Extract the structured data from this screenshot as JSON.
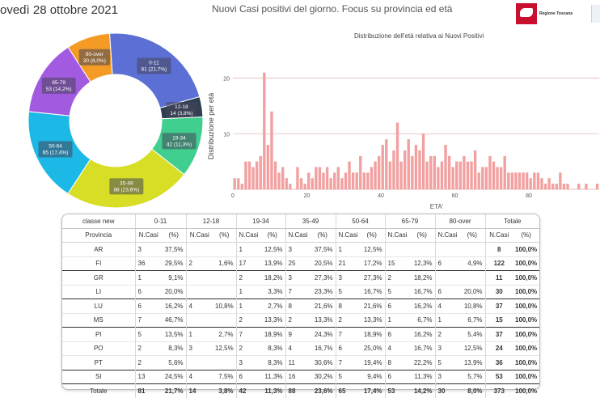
{
  "header": {
    "date": "ovedì 28 ottobre 2021",
    "title": "Nuovi Casi positivi del giorno. Focus su provincia ed età",
    "logo_text": "Regione Toscana"
  },
  "colors": {
    "accent": "#cc0000",
    "hist_bar": "#f2a0a0",
    "hist_grid": "#e2a9a9",
    "band_line": "#2e2e2e"
  },
  "donut": {
    "slices": [
      {
        "label": "0-11",
        "value": 81,
        "text": "81 (21,7%)",
        "color": "#5b6fd4"
      },
      {
        "label": "12-18",
        "value": 14,
        "text": "14 (3,8%)",
        "color": "#2f3f53"
      },
      {
        "label": "19-34",
        "value": 42,
        "text": "42 (11,3%)",
        "color": "#40cf8e"
      },
      {
        "label": "35-49",
        "value": 88,
        "text": "88 (23,6%)",
        "color": "#d7de25"
      },
      {
        "label": "50-64",
        "value": 65,
        "text": "65 (17,4%)",
        "color": "#1cb9e6"
      },
      {
        "label": "65-79",
        "value": 53,
        "text": "53 (14,2%)",
        "color": "#a25ae0"
      },
      {
        "label": "80-over",
        "value": 30,
        "text": "30 (8,0%)",
        "color": "#f39b25"
      }
    ]
  },
  "chart_data": {
    "type": "bar",
    "title": "Distribuzione dell'età relativa ai Nuovi Positivi",
    "xlabel": "ETA'",
    "ylabel": "Distribuzione per età",
    "xlim": [
      0,
      99
    ],
    "ylim": [
      0,
      23
    ],
    "xticks": [
      "0",
      "20",
      "40",
      "60",
      "80"
    ],
    "yticks": [
      "10",
      "20"
    ],
    "grid": true,
    "x": [
      0,
      1,
      2,
      3,
      4,
      5,
      6,
      7,
      8,
      9,
      10,
      11,
      12,
      13,
      14,
      15,
      16,
      17,
      18,
      19,
      20,
      21,
      22,
      23,
      24,
      25,
      26,
      27,
      28,
      29,
      30,
      31,
      32,
      33,
      34,
      35,
      36,
      37,
      38,
      39,
      40,
      41,
      42,
      43,
      44,
      45,
      46,
      47,
      48,
      49,
      50,
      51,
      52,
      53,
      54,
      55,
      56,
      57,
      58,
      59,
      60,
      61,
      62,
      63,
      64,
      65,
      66,
      67,
      68,
      69,
      70,
      71,
      72,
      73,
      74,
      75,
      76,
      77,
      78,
      79,
      80,
      81,
      82,
      83,
      84,
      85,
      86,
      87,
      88,
      89,
      90,
      91,
      92,
      93,
      94,
      95,
      96,
      97,
      98
    ],
    "values": [
      2,
      2,
      1,
      5,
      5,
      4,
      5,
      6,
      21,
      8,
      14,
      5,
      3,
      4,
      2,
      1,
      0,
      4,
      2,
      1,
      3,
      2,
      4,
      4,
      3,
      4,
      2,
      3,
      4,
      2,
      3,
      5,
      3,
      3,
      6,
      3,
      3,
      4,
      5,
      6,
      8,
      9,
      5,
      7,
      12,
      5,
      7,
      9,
      6,
      8,
      7,
      10,
      5,
      6,
      6,
      4,
      5,
      8,
      6,
      4,
      5,
      5,
      6,
      5,
      5,
      7,
      3,
      4,
      4,
      6,
      5,
      4,
      4,
      6,
      3,
      3,
      3,
      3,
      3,
      3,
      2,
      3,
      3,
      2,
      1,
      2,
      1,
      1,
      3,
      1,
      1,
      0,
      0,
      1,
      0,
      1,
      0,
      0,
      1
    ]
  },
  "table": {
    "group_headers": [
      "classe new",
      "0-11",
      "12-18",
      "19-34",
      "35-49",
      "50-64",
      "65-79",
      "80-over",
      "Totale"
    ],
    "sub_headers": {
      "province": "Provincia",
      "n": "N.Casi",
      "pct": "(%)"
    },
    "rows": [
      {
        "prov": "AR",
        "cells": [
          "3",
          "37,5%",
          "",
          "",
          "1",
          "12,5%",
          "3",
          "37,5%",
          "1",
          "12,5%",
          "",
          "",
          "",
          ""
        ],
        "tot_n": "8",
        "tot_p": "100,0%"
      },
      {
        "prov": "FI",
        "cells": [
          "36",
          "29,5%",
          "2",
          "1,6%",
          "17",
          "13,9%",
          "25",
          "20,5%",
          "21",
          "17,2%",
          "15",
          "12,3%",
          "6",
          "4,9%"
        ],
        "tot_n": "122",
        "tot_p": "100,0%"
      },
      {
        "prov": "GR",
        "cells": [
          "1",
          "9,1%",
          "",
          "",
          "2",
          "18,2%",
          "3",
          "27,3%",
          "3",
          "27,3%",
          "2",
          "18,2%",
          "",
          ""
        ],
        "tot_n": "11",
        "tot_p": "100,0%"
      },
      {
        "prov": "LI",
        "cells": [
          "6",
          "20,0%",
          "",
          "",
          "1",
          "3,3%",
          "7",
          "23,3%",
          "5",
          "16,7%",
          "5",
          "16,7%",
          "6",
          "20,0%"
        ],
        "tot_n": "30",
        "tot_p": "100,0%"
      },
      {
        "prov": "LU",
        "cells": [
          "6",
          "16,2%",
          "4",
          "10,8%",
          "1",
          "2,7%",
          "8",
          "21,6%",
          "8",
          "21,6%",
          "6",
          "16,2%",
          "4",
          "10,8%"
        ],
        "tot_n": "37",
        "tot_p": "100,0%"
      },
      {
        "prov": "MS",
        "cells": [
          "7",
          "46,7%",
          "",
          "",
          "2",
          "13,3%",
          "2",
          "13,3%",
          "2",
          "13,3%",
          "1",
          "6,7%",
          "1",
          "6,7%"
        ],
        "tot_n": "15",
        "tot_p": "100,0%"
      },
      {
        "prov": "PI",
        "cells": [
          "5",
          "13,5%",
          "1",
          "2,7%",
          "7",
          "18,9%",
          "9",
          "24,3%",
          "7",
          "18,9%",
          "6",
          "16,2%",
          "2",
          "5,4%"
        ],
        "tot_n": "37",
        "tot_p": "100,0%"
      },
      {
        "prov": "PO",
        "cells": [
          "2",
          "8,3%",
          "3",
          "12,5%",
          "2",
          "8,3%",
          "4",
          "16,7%",
          "6",
          "25,0%",
          "4",
          "16,7%",
          "3",
          "12,5%"
        ],
        "tot_n": "24",
        "tot_p": "100,0%"
      },
      {
        "prov": "PT",
        "cells": [
          "2",
          "5,6%",
          "",
          "",
          "3",
          "8,3%",
          "11",
          "30,6%",
          "7",
          "19,4%",
          "8",
          "22,2%",
          "5",
          "13,9%"
        ],
        "tot_n": "36",
        "tot_p": "100,0%"
      },
      {
        "prov": "SI",
        "cells": [
          "13",
          "24,5%",
          "4",
          "7,5%",
          "6",
          "11,3%",
          "16",
          "30,2%",
          "5",
          "9,4%",
          "6",
          "11,3%",
          "3",
          "5,7%"
        ],
        "tot_n": "53",
        "tot_p": "100,0%"
      }
    ],
    "total_row": {
      "label": "Totale",
      "cells": [
        "81",
        "21,7%",
        "14",
        "3,8%",
        "42",
        "11,3%",
        "88",
        "23,6%",
        "65",
        "17,4%",
        "53",
        "14,2%",
        "30",
        "8,0%"
      ],
      "tot_n": "373",
      "tot_p": "100,0%"
    }
  }
}
